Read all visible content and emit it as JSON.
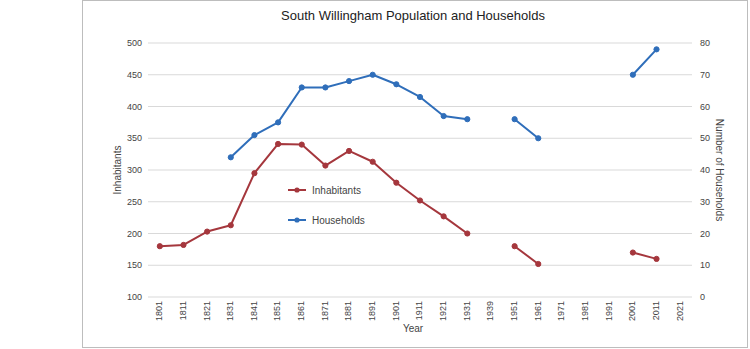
{
  "chart_data": {
    "type": "line",
    "title": "South Willingham Population and Households",
    "x_label": "Year",
    "y_label": "Inhabitants",
    "y2_label": "Number of Households",
    "categories": [
      "1801",
      "1811",
      "1821",
      "1831",
      "1841",
      "1851",
      "1861",
      "1871",
      "1881",
      "1891",
      "1901",
      "1911",
      "1921",
      "1931",
      "1939",
      "1951",
      "1961",
      "1971",
      "1981",
      "1991",
      "2001",
      "2011",
      "2021"
    ],
    "series": [
      {
        "name": "Inhabitants",
        "color": "#a5373d",
        "marker": "circle",
        "values": [
          180,
          182,
          203,
          213,
          295,
          341,
          340,
          307,
          330,
          313,
          280,
          252,
          227,
          200,
          null,
          180,
          152,
          null,
          null,
          null,
          170,
          160,
          null
        ]
      },
      {
        "name": "Households",
        "color": "#2f6eba",
        "marker": "circle",
        "axis": "y2",
        "values": [
          null,
          null,
          null,
          44,
          51,
          55,
          66,
          66,
          68,
          70,
          67,
          63,
          57,
          56,
          null,
          56,
          50,
          null,
          null,
          null,
          70,
          78,
          null
        ]
      }
    ],
    "ylim": [
      100,
      500
    ],
    "yticks": [
      100,
      150,
      200,
      250,
      300,
      350,
      400,
      450,
      500
    ],
    "y2lim": [
      0,
      80
    ],
    "y2ticks": [
      0,
      10,
      20,
      30,
      40,
      50,
      60,
      70,
      80
    ],
    "grid": true,
    "legend": "center"
  }
}
